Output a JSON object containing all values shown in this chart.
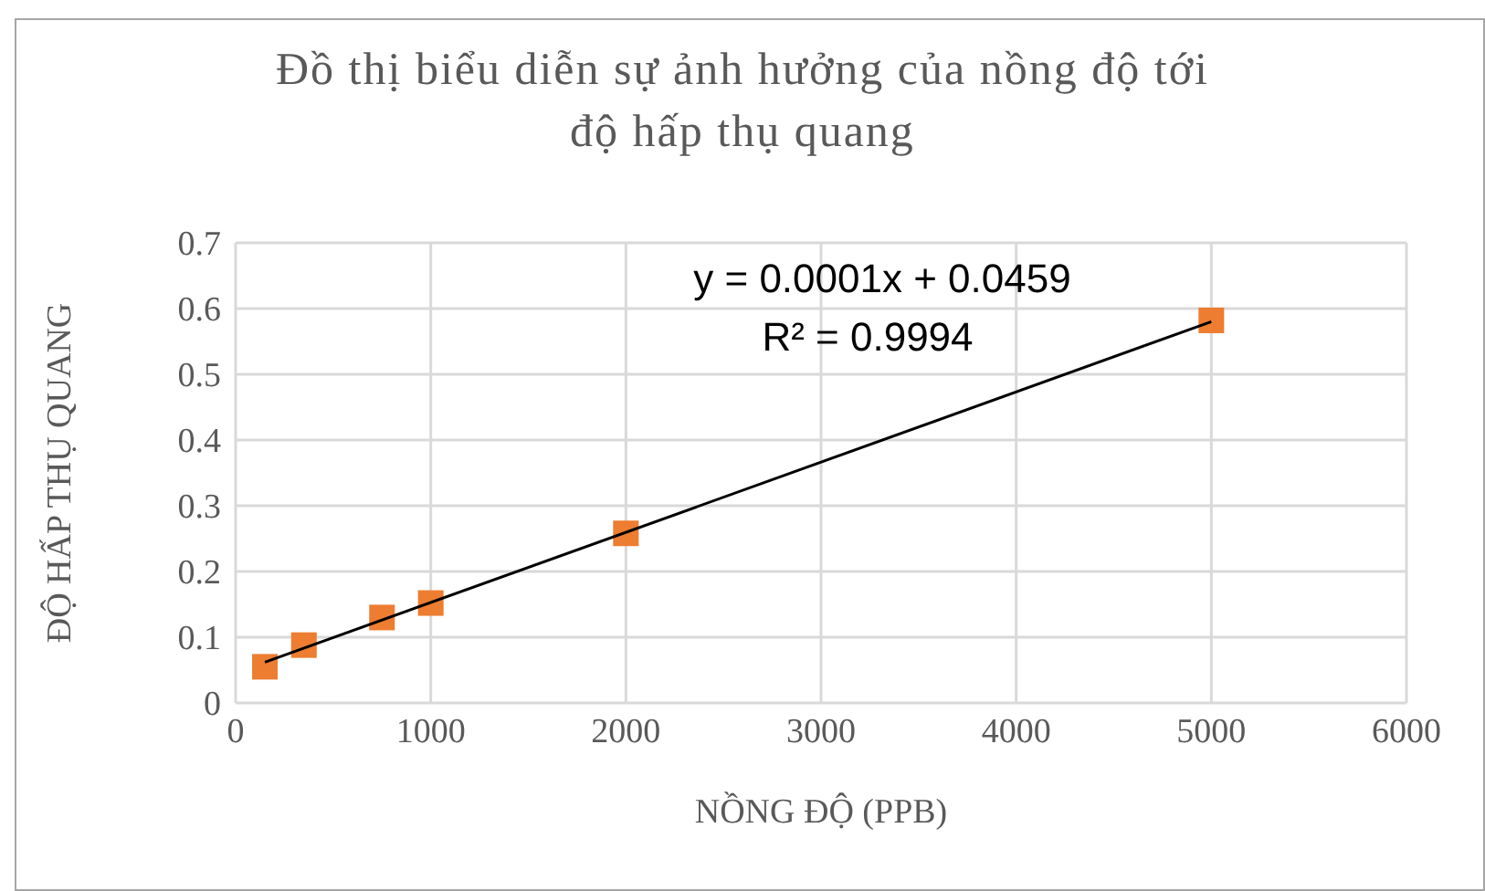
{
  "chart_data": {
    "type": "scatter",
    "title": "Đồ thị biểu diễn sự ảnh hưởng của nồng độ tới\nđộ hấp thụ quang",
    "xlabel": "NỒNG ĐỘ (PPB)",
    "ylabel": "ĐỘ HẤP THỤ QUANG",
    "series": [
      {
        "color": "#ed7d31",
        "marker": "square",
        "x": [
          150,
          350,
          750,
          1000,
          2000,
          5000
        ],
        "values": [
          0.055,
          0.088,
          0.13,
          0.152,
          0.258,
          0.582
        ]
      },
      {
        "type": "line",
        "color": "#000000",
        "marker": "none",
        "x": [
          150,
          5000
        ],
        "values": [
          0.062,
          0.58
        ]
      }
    ],
    "annotations": [
      "y = 0.0001x + 0.0459",
      "R² = 0.9994"
    ],
    "xlim": [
      0,
      6000
    ],
    "xticks": [
      0,
      1000,
      2000,
      3000,
      4000,
      5000,
      6000
    ],
    "ylim": [
      0,
      0.7
    ],
    "yticks": [
      0,
      0.1,
      0.2,
      0.3,
      0.4,
      0.5,
      0.6,
      0.7
    ],
    "grid": true
  }
}
